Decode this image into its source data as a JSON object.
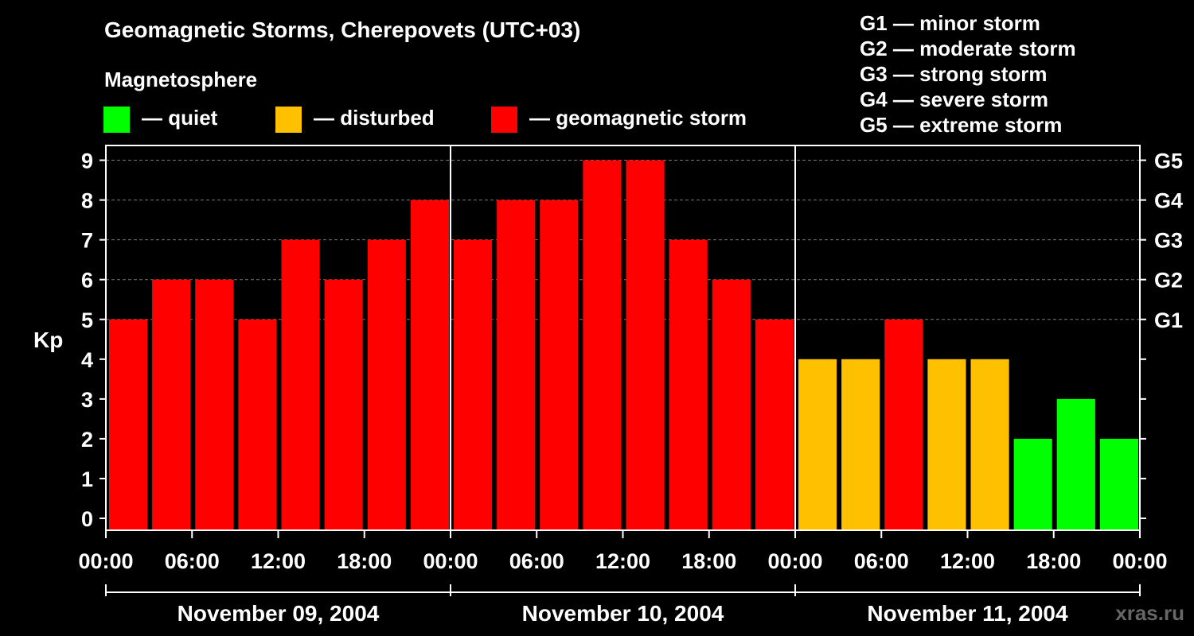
{
  "title": "Geomagnetic Storms, Cherepovets (UTC+03)",
  "magnetosphere_label": "Magnetosphere",
  "legend": [
    {
      "label": "— quiet",
      "color": "#00ff00"
    },
    {
      "label": "— disturbed",
      "color": "#ffc000"
    },
    {
      "label": "— geomagnetic storm",
      "color": "#ff0000"
    }
  ],
  "storm_scale": [
    "G1 — minor storm",
    "G2 — moderate storm",
    "G3 — strong storm",
    "G4 — severe storm",
    "G5 — extreme storm"
  ],
  "watermark": "xras.ru",
  "chart_data": {
    "type": "bar",
    "ylabel": "Kp",
    "ylim": [
      0,
      9
    ],
    "yticks": [
      0,
      1,
      2,
      3,
      4,
      5,
      6,
      7,
      8,
      9
    ],
    "right_axis_labels": [
      {
        "kp": 5,
        "label": "G1"
      },
      {
        "kp": 6,
        "label": "G2"
      },
      {
        "kp": 7,
        "label": "G3"
      },
      {
        "kp": 8,
        "label": "G4"
      },
      {
        "kp": 9,
        "label": "G5"
      }
    ],
    "xtick_labels": [
      "00:00",
      "06:00",
      "12:00",
      "18:00",
      "00:00",
      "06:00",
      "12:00",
      "18:00",
      "00:00",
      "06:00",
      "12:00",
      "18:00",
      "00:00"
    ],
    "days": [
      "November 09, 2004",
      "November 10, 2004",
      "November 11, 2004"
    ],
    "values": [
      5,
      6,
      6,
      5,
      7,
      6,
      7,
      8,
      7,
      8,
      8,
      9,
      9,
      7,
      6,
      5,
      4,
      4,
      5,
      4,
      4,
      2,
      3,
      2
    ],
    "colors": {
      "quiet": "#00ff00",
      "disturbed": "#ffc000",
      "storm": "#ff0000"
    }
  }
}
